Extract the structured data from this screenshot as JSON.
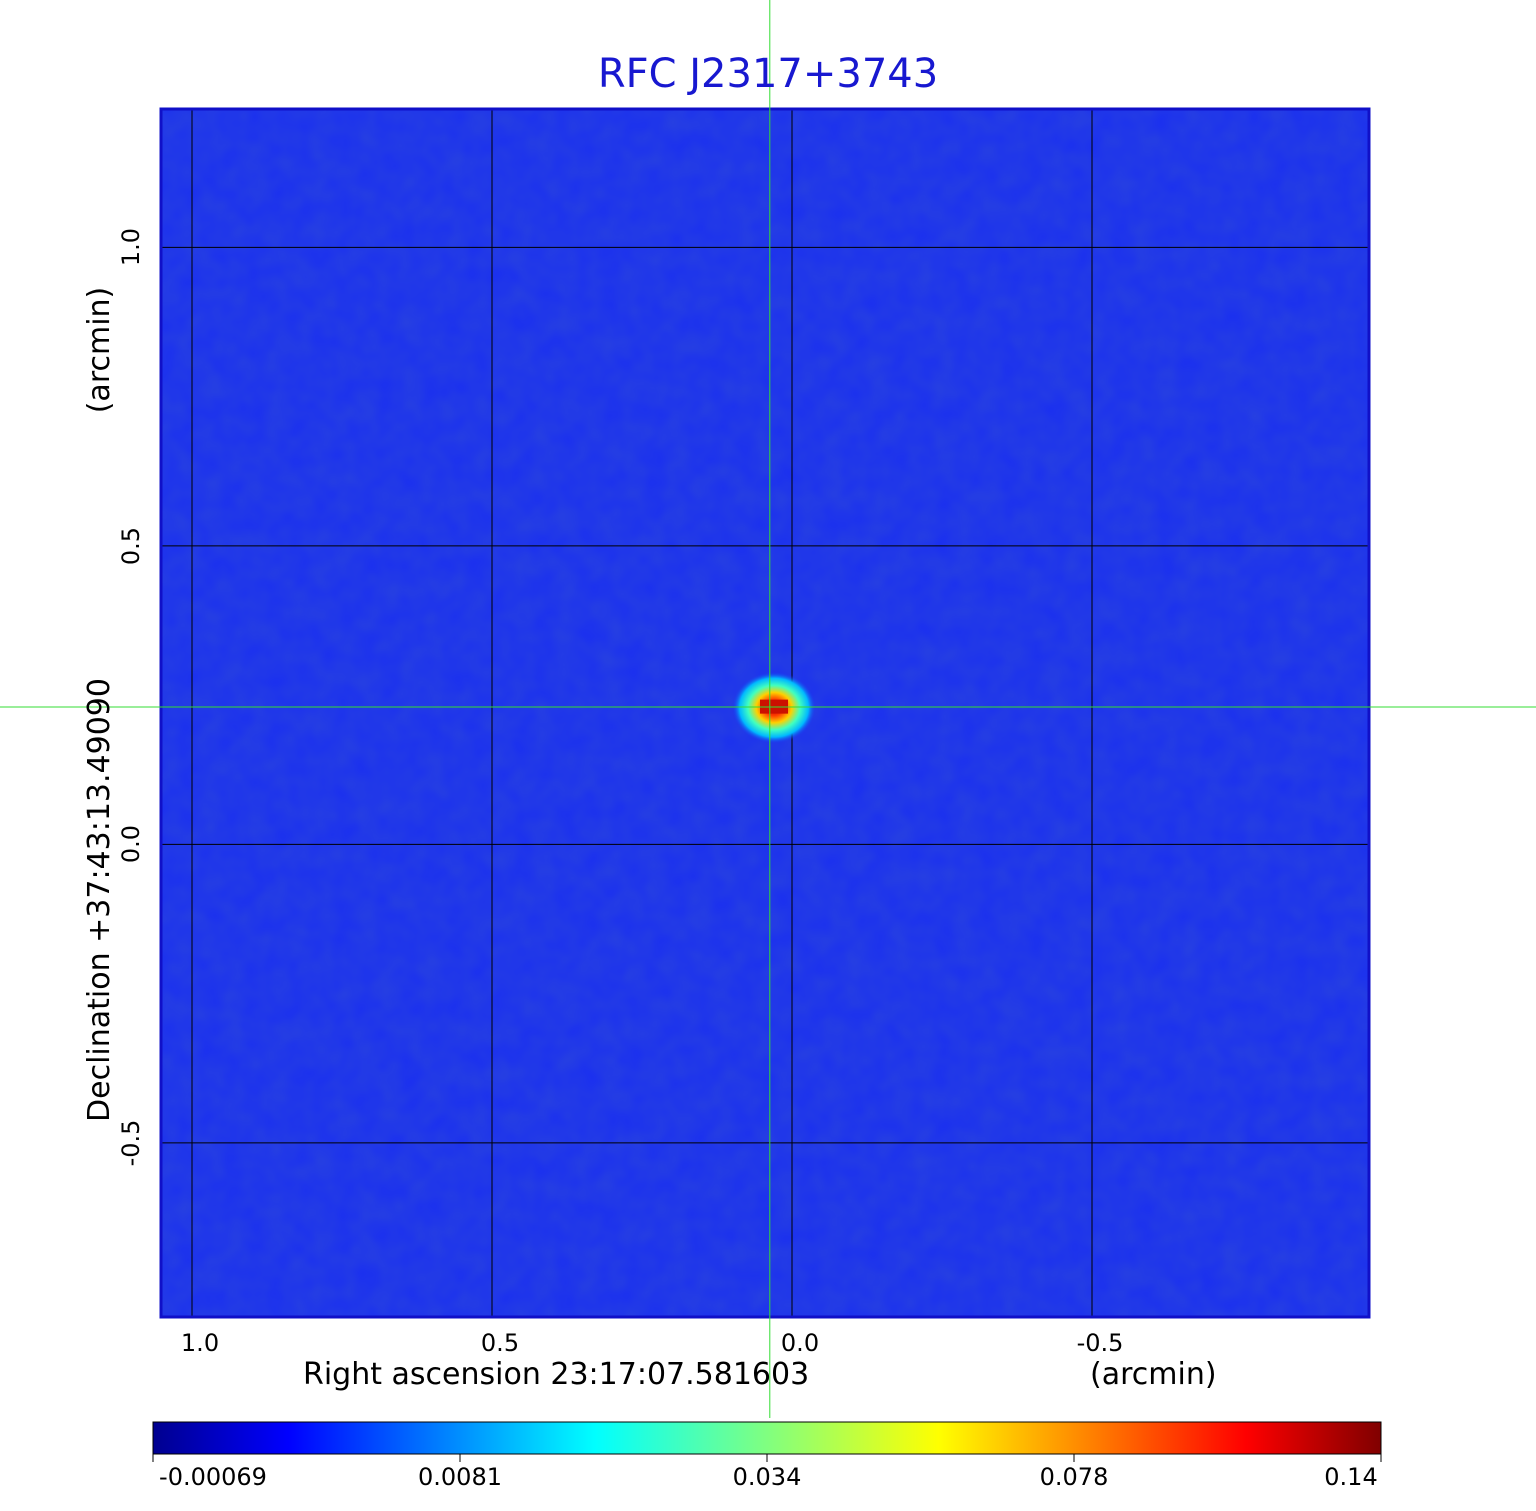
{
  "chart_data": {
    "type": "heatmap",
    "title": "RFC J2317+3743",
    "xlabel": "Right ascension  23:17:07.581603",
    "xunit": "(arcmin)",
    "ylabel": "Declination  +37:43:13.49090",
    "yunit": "(arcmin)",
    "xlim": [
      1.05,
      -0.96
    ],
    "ylim": [
      -0.79,
      1.23
    ],
    "xticks": [
      1.0,
      0.5,
      0.0,
      -0.5
    ],
    "xtick_labels": [
      "1.0",
      "0.5",
      "0.0",
      "-0.5"
    ],
    "yticks": [
      1.0,
      0.5,
      0.0,
      -0.5
    ],
    "ytick_labels": [
      "1.0",
      "0.5",
      "0.0",
      "-0.5"
    ],
    "grid": true,
    "crosshair": {
      "x": 0.037,
      "y": 0.23,
      "color": "#33dd33"
    },
    "peak": {
      "x": 0.03,
      "y": 0.229,
      "value": 0.14
    },
    "colormap": "jet",
    "colorbar": {
      "min": -0.00069,
      "max": 0.14,
      "tick_values": [
        -0.00069,
        0.0081,
        0.034,
        0.078,
        0.14
      ],
      "tick_labels": [
        "-0.00069",
        "0.0081",
        "0.034",
        "0.078",
        "0.14"
      ]
    },
    "colors": {
      "title": "#1818d0",
      "background_map": "#1a2ff0",
      "frame": "#1010c8",
      "grid": "#000000"
    }
  }
}
